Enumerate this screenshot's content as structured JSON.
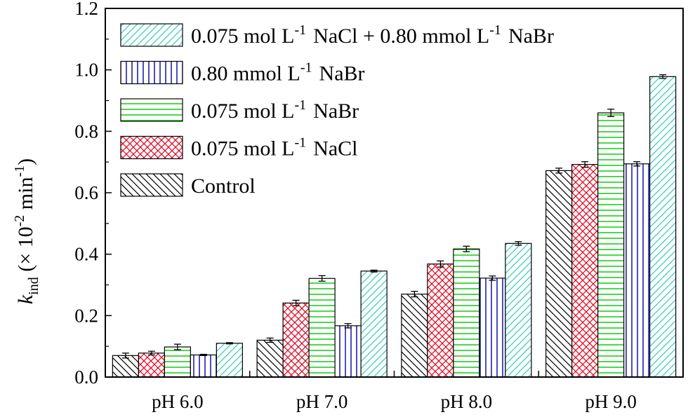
{
  "chart_data": {
    "type": "bar",
    "categories": [
      "pH 6.0",
      "pH 7.0",
      "pH 8.0",
      "pH 9.0"
    ],
    "ylabel": {
      "var": "k",
      "sub": "ind",
      "open": " (× 10",
      "exp": "-2",
      "mid": " min",
      "exp2": "-1",
      "close": ")"
    },
    "ylim": [
      0,
      1.2
    ],
    "yticks": [
      "0.0",
      "0.2",
      "0.4",
      "0.6",
      "0.8",
      "1.0",
      "1.2"
    ],
    "legend_position": "top-left",
    "series": [
      {
        "name": "Control",
        "pattern": "diag-back",
        "color": "#000000",
        "values": [
          0.07,
          0.12,
          0.27,
          0.672
        ],
        "errors": [
          0.008,
          0.007,
          0.009,
          0.008
        ]
      },
      {
        "name": "0.075 mol L<sup>-1</sup> NaCl",
        "pattern": "crosshatch",
        "color": "#e8001c",
        "values": [
          0.078,
          0.241,
          0.368,
          0.692
        ],
        "errors": [
          0.006,
          0.009,
          0.01,
          0.009
        ]
      },
      {
        "name": "0.075 mol L<sup>-1</sup> NaBr",
        "pattern": "horizontal",
        "color": "#11cc11",
        "values": [
          0.098,
          0.321,
          0.417,
          0.86
        ],
        "errors": [
          0.009,
          0.009,
          0.009,
          0.012
        ]
      },
      {
        "name": "0.80 mmol L<sup>-1</sup> NaBr",
        "pattern": "vertical",
        "color": "#1111aa",
        "values": [
          0.072,
          0.167,
          0.322,
          0.694
        ],
        "errors": [
          0.002,
          0.007,
          0.007,
          0.007
        ]
      },
      {
        "name": "0.075 mol L<sup>-1</sup> NaCl + 0.80 mmol L<sup>-1</sup> NaBr",
        "pattern": "diag-fwd",
        "color": "#33ccbb",
        "values": [
          0.11,
          0.345,
          0.435,
          0.978
        ],
        "errors": [
          0.002,
          0.003,
          0.006,
          0.006
        ]
      }
    ]
  }
}
